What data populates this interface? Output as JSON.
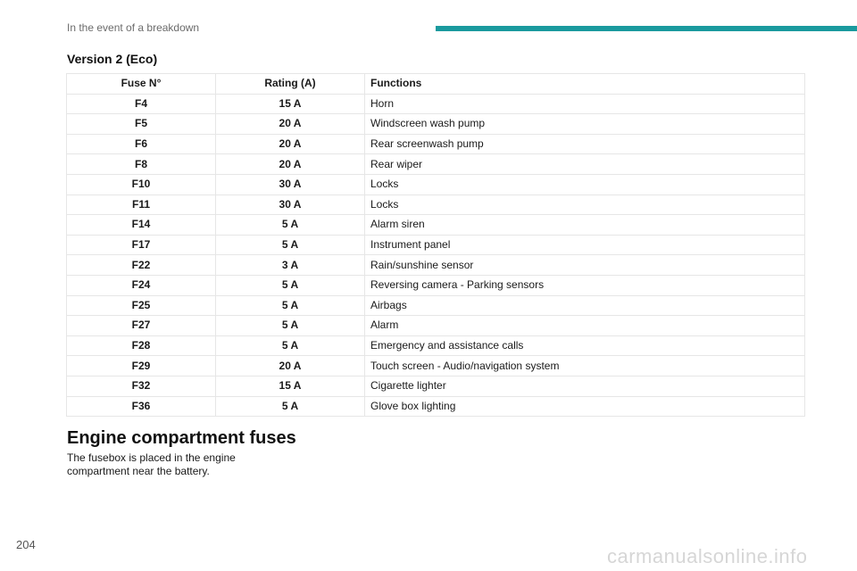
{
  "header": {
    "title": "In the event of a breakdown"
  },
  "section": {
    "title": "Version 2 (Eco)"
  },
  "table": {
    "headers": [
      "Fuse N°",
      "Rating (A)",
      "Functions"
    ],
    "rows": [
      [
        "F4",
        "15 A",
        "Horn"
      ],
      [
        "F5",
        "20 A",
        "Windscreen wash pump"
      ],
      [
        "F6",
        "20 A",
        "Rear screenwash pump"
      ],
      [
        "F8",
        "20 A",
        "Rear wiper"
      ],
      [
        "F10",
        "30 A",
        "Locks"
      ],
      [
        "F11",
        "30 A",
        "Locks"
      ],
      [
        "F14",
        "5 A",
        "Alarm siren"
      ],
      [
        "F17",
        "5 A",
        "Instrument panel"
      ],
      [
        "F22",
        "3 A",
        "Rain/sunshine sensor"
      ],
      [
        "F24",
        "5 A",
        "Reversing camera - Parking sensors"
      ],
      [
        "F25",
        "5 A",
        "Airbags"
      ],
      [
        "F27",
        "5 A",
        "Alarm"
      ],
      [
        "F28",
        "5 A",
        "Emergency and assistance calls"
      ],
      [
        "F29",
        "20 A",
        "Touch screen - Audio/navigation system"
      ],
      [
        "F32",
        "15 A",
        "Cigarette lighter"
      ],
      [
        "F36",
        "5 A",
        "Glove box lighting"
      ]
    ]
  },
  "engine": {
    "heading": "Engine compartment fuses",
    "body_line1": "The fusebox is placed in the engine",
    "body_line2": "compartment near the battery."
  },
  "footer": {
    "page_number": "204",
    "watermark": "carmanualsonline.info"
  },
  "colors": {
    "accent_bar": "#1a9a9e",
    "grid": "#e6e6e6"
  }
}
